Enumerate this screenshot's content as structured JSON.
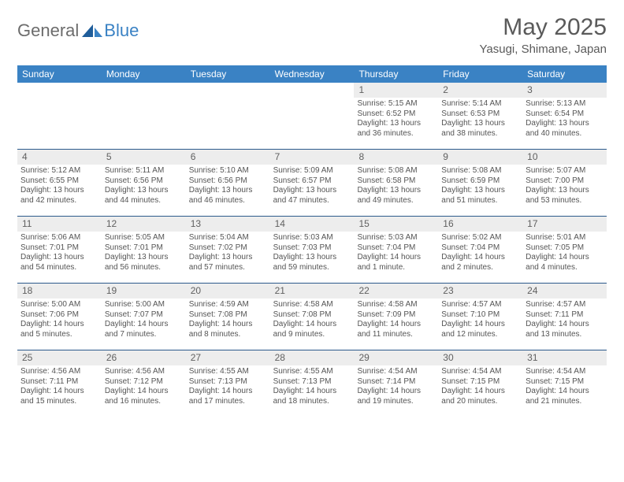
{
  "logo": {
    "part1": "General",
    "part2": "Blue"
  },
  "title": "May 2025",
  "location": "Yasugi, Shimane, Japan",
  "colors": {
    "header_bg": "#3a82c4",
    "header_text": "#ffffff",
    "daynum_bg": "#ededed",
    "rule": "#2c5a8c",
    "body_text": "#555555"
  },
  "weekdays": [
    "Sunday",
    "Monday",
    "Tuesday",
    "Wednesday",
    "Thursday",
    "Friday",
    "Saturday"
  ],
  "weeks": [
    [
      {
        "n": "",
        "sr": "",
        "ss": "",
        "dl": ""
      },
      {
        "n": "",
        "sr": "",
        "ss": "",
        "dl": ""
      },
      {
        "n": "",
        "sr": "",
        "ss": "",
        "dl": ""
      },
      {
        "n": "",
        "sr": "",
        "ss": "",
        "dl": ""
      },
      {
        "n": "1",
        "sr": "Sunrise: 5:15 AM",
        "ss": "Sunset: 6:52 PM",
        "dl": "Daylight: 13 hours and 36 minutes."
      },
      {
        "n": "2",
        "sr": "Sunrise: 5:14 AM",
        "ss": "Sunset: 6:53 PM",
        "dl": "Daylight: 13 hours and 38 minutes."
      },
      {
        "n": "3",
        "sr": "Sunrise: 5:13 AM",
        "ss": "Sunset: 6:54 PM",
        "dl": "Daylight: 13 hours and 40 minutes."
      }
    ],
    [
      {
        "n": "4",
        "sr": "Sunrise: 5:12 AM",
        "ss": "Sunset: 6:55 PM",
        "dl": "Daylight: 13 hours and 42 minutes."
      },
      {
        "n": "5",
        "sr": "Sunrise: 5:11 AM",
        "ss": "Sunset: 6:56 PM",
        "dl": "Daylight: 13 hours and 44 minutes."
      },
      {
        "n": "6",
        "sr": "Sunrise: 5:10 AM",
        "ss": "Sunset: 6:56 PM",
        "dl": "Daylight: 13 hours and 46 minutes."
      },
      {
        "n": "7",
        "sr": "Sunrise: 5:09 AM",
        "ss": "Sunset: 6:57 PM",
        "dl": "Daylight: 13 hours and 47 minutes."
      },
      {
        "n": "8",
        "sr": "Sunrise: 5:08 AM",
        "ss": "Sunset: 6:58 PM",
        "dl": "Daylight: 13 hours and 49 minutes."
      },
      {
        "n": "9",
        "sr": "Sunrise: 5:08 AM",
        "ss": "Sunset: 6:59 PM",
        "dl": "Daylight: 13 hours and 51 minutes."
      },
      {
        "n": "10",
        "sr": "Sunrise: 5:07 AM",
        "ss": "Sunset: 7:00 PM",
        "dl": "Daylight: 13 hours and 53 minutes."
      }
    ],
    [
      {
        "n": "11",
        "sr": "Sunrise: 5:06 AM",
        "ss": "Sunset: 7:01 PM",
        "dl": "Daylight: 13 hours and 54 minutes."
      },
      {
        "n": "12",
        "sr": "Sunrise: 5:05 AM",
        "ss": "Sunset: 7:01 PM",
        "dl": "Daylight: 13 hours and 56 minutes."
      },
      {
        "n": "13",
        "sr": "Sunrise: 5:04 AM",
        "ss": "Sunset: 7:02 PM",
        "dl": "Daylight: 13 hours and 57 minutes."
      },
      {
        "n": "14",
        "sr": "Sunrise: 5:03 AM",
        "ss": "Sunset: 7:03 PM",
        "dl": "Daylight: 13 hours and 59 minutes."
      },
      {
        "n": "15",
        "sr": "Sunrise: 5:03 AM",
        "ss": "Sunset: 7:04 PM",
        "dl": "Daylight: 14 hours and 1 minute."
      },
      {
        "n": "16",
        "sr": "Sunrise: 5:02 AM",
        "ss": "Sunset: 7:04 PM",
        "dl": "Daylight: 14 hours and 2 minutes."
      },
      {
        "n": "17",
        "sr": "Sunrise: 5:01 AM",
        "ss": "Sunset: 7:05 PM",
        "dl": "Daylight: 14 hours and 4 minutes."
      }
    ],
    [
      {
        "n": "18",
        "sr": "Sunrise: 5:00 AM",
        "ss": "Sunset: 7:06 PM",
        "dl": "Daylight: 14 hours and 5 minutes."
      },
      {
        "n": "19",
        "sr": "Sunrise: 5:00 AM",
        "ss": "Sunset: 7:07 PM",
        "dl": "Daylight: 14 hours and 7 minutes."
      },
      {
        "n": "20",
        "sr": "Sunrise: 4:59 AM",
        "ss": "Sunset: 7:08 PM",
        "dl": "Daylight: 14 hours and 8 minutes."
      },
      {
        "n": "21",
        "sr": "Sunrise: 4:58 AM",
        "ss": "Sunset: 7:08 PM",
        "dl": "Daylight: 14 hours and 9 minutes."
      },
      {
        "n": "22",
        "sr": "Sunrise: 4:58 AM",
        "ss": "Sunset: 7:09 PM",
        "dl": "Daylight: 14 hours and 11 minutes."
      },
      {
        "n": "23",
        "sr": "Sunrise: 4:57 AM",
        "ss": "Sunset: 7:10 PM",
        "dl": "Daylight: 14 hours and 12 minutes."
      },
      {
        "n": "24",
        "sr": "Sunrise: 4:57 AM",
        "ss": "Sunset: 7:11 PM",
        "dl": "Daylight: 14 hours and 13 minutes."
      }
    ],
    [
      {
        "n": "25",
        "sr": "Sunrise: 4:56 AM",
        "ss": "Sunset: 7:11 PM",
        "dl": "Daylight: 14 hours and 15 minutes."
      },
      {
        "n": "26",
        "sr": "Sunrise: 4:56 AM",
        "ss": "Sunset: 7:12 PM",
        "dl": "Daylight: 14 hours and 16 minutes."
      },
      {
        "n": "27",
        "sr": "Sunrise: 4:55 AM",
        "ss": "Sunset: 7:13 PM",
        "dl": "Daylight: 14 hours and 17 minutes."
      },
      {
        "n": "28",
        "sr": "Sunrise: 4:55 AM",
        "ss": "Sunset: 7:13 PM",
        "dl": "Daylight: 14 hours and 18 minutes."
      },
      {
        "n": "29",
        "sr": "Sunrise: 4:54 AM",
        "ss": "Sunset: 7:14 PM",
        "dl": "Daylight: 14 hours and 19 minutes."
      },
      {
        "n": "30",
        "sr": "Sunrise: 4:54 AM",
        "ss": "Sunset: 7:15 PM",
        "dl": "Daylight: 14 hours and 20 minutes."
      },
      {
        "n": "31",
        "sr": "Sunrise: 4:54 AM",
        "ss": "Sunset: 7:15 PM",
        "dl": "Daylight: 14 hours and 21 minutes."
      }
    ]
  ]
}
